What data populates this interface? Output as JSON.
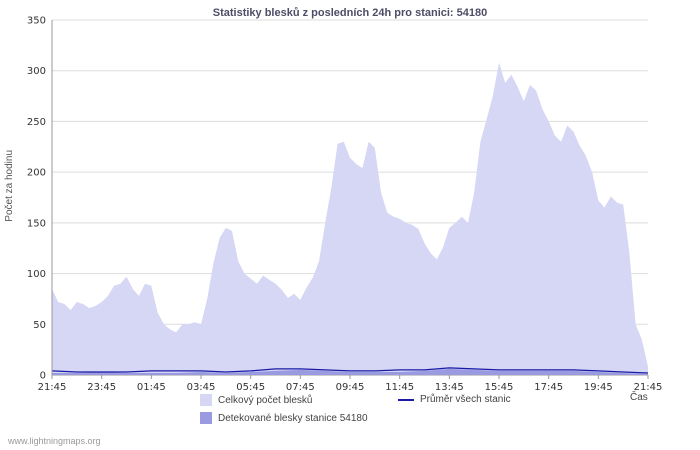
{
  "page": {
    "title": "Statistiky blesků z posledních 24h pro stanici: 54180",
    "watermark": "www.lightningmaps.org"
  },
  "chart_data": {
    "type": "area",
    "title": "Statistiky blesků z posledních 24h pro stanici: 54180",
    "xlabel": "Čas",
    "ylabel": "Počet za hodinu",
    "ylim": [
      0,
      350
    ],
    "ytick_step": 50,
    "grid": "horizontal",
    "legend_position": "bottom",
    "x_interval_minutes": 15,
    "x_tick_labels": [
      "21:45",
      "23:45",
      "01:45",
      "03:45",
      "05:45",
      "07:45",
      "09:45",
      "11:45",
      "13:45",
      "15:45",
      "17:45",
      "19:45",
      "21:45"
    ],
    "series": [
      {
        "name": "Celkový počet blesků",
        "type": "area",
        "color": "#d6d6f5",
        "values": [
          85,
          72,
          70,
          64,
          72,
          70,
          66,
          68,
          72,
          78,
          88,
          90,
          97,
          85,
          78,
          90,
          88,
          62,
          50,
          45,
          42,
          50,
          50,
          52,
          50,
          75,
          110,
          135,
          145,
          142,
          112,
          100,
          95,
          90,
          98,
          94,
          90,
          84,
          76,
          80,
          74,
          86,
          96,
          112,
          150,
          185,
          228,
          230,
          214,
          208,
          204,
          230,
          224,
          180,
          160,
          156,
          154,
          150,
          148,
          144,
          130,
          120,
          114,
          126,
          145,
          150,
          156,
          150,
          180,
          230,
          252,
          275,
          308,
          288,
          296,
          284,
          270,
          286,
          280,
          262,
          250,
          236,
          230,
          246,
          240,
          226,
          216,
          200,
          172,
          165,
          176,
          170,
          168,
          120,
          50,
          35,
          8
        ]
      },
      {
        "name": "Detekované blesky stanice 54180",
        "type": "area",
        "color": "#9a9ae0",
        "values": [
          2,
          2,
          3,
          2,
          2,
          2,
          3,
          2,
          3,
          4,
          5,
          4,
          3,
          3,
          3,
          4,
          6,
          5,
          4,
          4,
          4,
          4,
          3,
          2,
          1
        ]
      },
      {
        "name": "Průměr všech stanic",
        "type": "line",
        "color": "#1a1aa6",
        "values": [
          4,
          3,
          3,
          3,
          4,
          4,
          4,
          3,
          4,
          6,
          6,
          5,
          4,
          4,
          5,
          5,
          7,
          6,
          5,
          5,
          5,
          5,
          4,
          3,
          2
        ]
      }
    ]
  }
}
